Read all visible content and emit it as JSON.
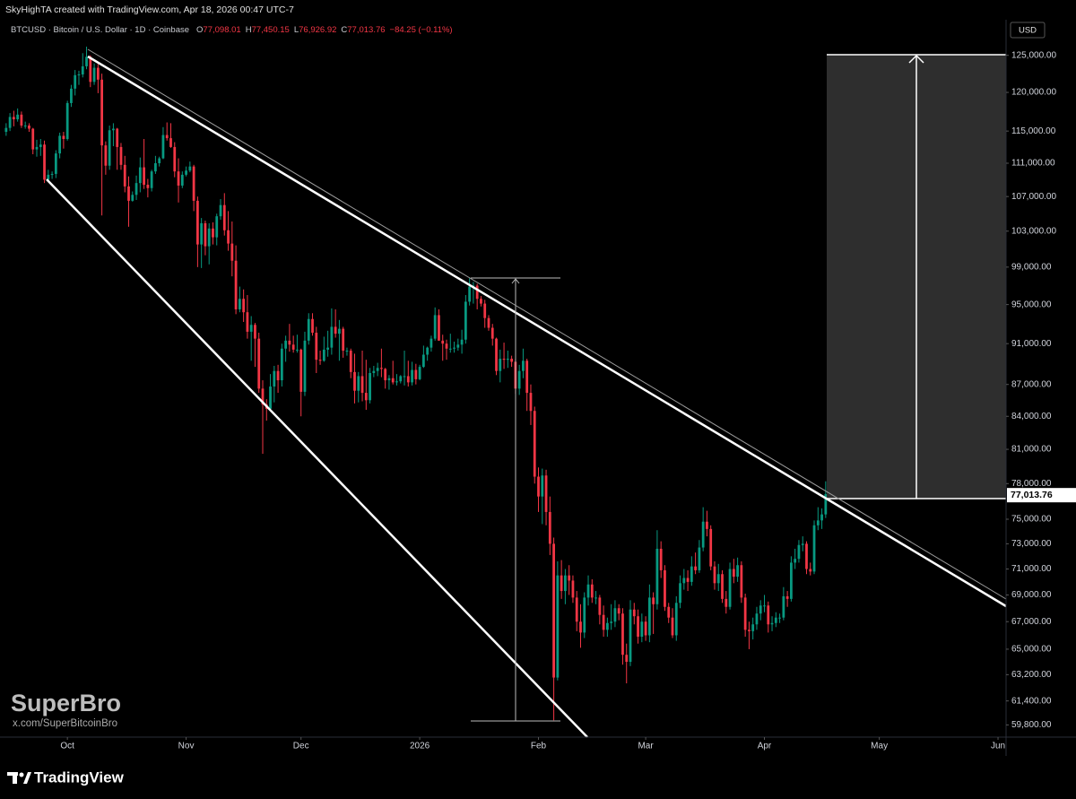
{
  "chart_data": {
    "type": "candlestick",
    "header": "SkyHighTA created with TradingView.com, Apr 18, 2026 00:47 UTC-7",
    "symbol": "BTCUSD · Bitcoin / U.S. Dollar · 1D · Coinbase",
    "ohlc_legend": [
      {
        "label": "O",
        "value": "77,098.01"
      },
      {
        "label": "H",
        "value": "77,450.15"
      },
      {
        "label": "L",
        "value": "76,926.92"
      },
      {
        "label": "C",
        "value": "77,013.76"
      }
    ],
    "change": "−84.25 (−0.11%)",
    "currency": "USD",
    "last_price_label": "77,013.76",
    "watermark": "SuperBro",
    "watermark_link": "x.com/SuperBitcoinBro",
    "brand": "TradingView",
    "up_color": "#089981",
    "down_color": "#f23645",
    "log_scale": true,
    "grid": false,
    "xlim": [
      -1.6,
      261.1
    ],
    "ylim": [
      59000,
      130000
    ],
    "xticks": [
      {
        "value": 16,
        "label": "Oct"
      },
      {
        "value": 47,
        "label": "Nov"
      },
      {
        "value": 77,
        "label": "Dec"
      },
      {
        "value": 108,
        "label": "2026"
      },
      {
        "value": 139,
        "label": "Feb"
      },
      {
        "value": 167,
        "label": "Mar"
      },
      {
        "value": 198,
        "label": "Apr"
      },
      {
        "value": 228,
        "label": "May"
      },
      {
        "value": 259,
        "label": "Jun"
      }
    ],
    "yticks": [
      {
        "value": 125000,
        "label": "125,000.00"
      },
      {
        "value": 120000,
        "label": "120,000.00"
      },
      {
        "value": 115000,
        "label": "115,000.00"
      },
      {
        "value": 111000,
        "label": "111,000.00"
      },
      {
        "value": 107000,
        "label": "107,000.00"
      },
      {
        "value": 103000,
        "label": "103,000.00"
      },
      {
        "value": 99000,
        "label": "99,000.00"
      },
      {
        "value": 95000,
        "label": "95,000.00"
      },
      {
        "value": 91000,
        "label": "91,000.00"
      },
      {
        "value": 87000,
        "label": "87,000.00"
      },
      {
        "value": 84000,
        "label": "84,000.00"
      },
      {
        "value": 81000,
        "label": "81,000.00"
      },
      {
        "value": 78000,
        "label": "78,000.00"
      },
      {
        "value": 75000,
        "label": "75,000.00"
      },
      {
        "value": 73000,
        "label": "73,000.00"
      },
      {
        "value": 71000,
        "label": "71,000.00"
      },
      {
        "value": 69000,
        "label": "69,000.00"
      },
      {
        "value": 67000,
        "label": "67,000.00"
      },
      {
        "value": 65000,
        "label": "65,000.00"
      },
      {
        "value": 63200,
        "label": "63,200.00"
      },
      {
        "value": 61400,
        "label": "61,400.00"
      },
      {
        "value": 59800,
        "label": "59,800.00"
      }
    ],
    "ohlc": [
      [
        114900,
        116000,
        114400,
        115400
      ],
      [
        115400,
        117300,
        115000,
        116800
      ],
      [
        116800,
        117600,
        115600,
        116500
      ],
      [
        116500,
        117900,
        116200,
        117100
      ],
      [
        117100,
        117500,
        115400,
        115700
      ],
      [
        115700,
        116200,
        115300,
        115700
      ],
      [
        115700,
        116000,
        114900,
        115300
      ],
      [
        115300,
        115400,
        112100,
        112700
      ],
      [
        112700,
        113900,
        111800,
        113000
      ],
      [
        113000,
        114000,
        111900,
        113300
      ],
      [
        113300,
        113800,
        108600,
        109000
      ],
      [
        109000,
        110200,
        108700,
        109600
      ],
      [
        109600,
        110000,
        109100,
        109700
      ],
      [
        109700,
        112600,
        109200,
        112200
      ],
      [
        112200,
        114800,
        111600,
        114400
      ],
      [
        114400,
        114900,
        112800,
        114000
      ],
      [
        114000,
        118900,
        113800,
        118600
      ],
      [
        118600,
        121000,
        118100,
        120500
      ],
      [
        120500,
        123000,
        119600,
        122300
      ],
      [
        122300,
        122900,
        121000,
        122400
      ],
      [
        122400,
        125300,
        122000,
        123500
      ],
      [
        123500,
        126200,
        123100,
        124800
      ],
      [
        124800,
        125000,
        120700,
        121400
      ],
      [
        121400,
        123900,
        121000,
        123300
      ],
      [
        123300,
        123800,
        119900,
        121700
      ],
      [
        121700,
        122500,
        104800,
        113200
      ],
      [
        113200,
        113700,
        109600,
        110700
      ],
      [
        110700,
        115700,
        110200,
        115100
      ],
      [
        115100,
        116000,
        113100,
        115300
      ],
      [
        115300,
        115400,
        110200,
        113000
      ],
      [
        113000,
        113500,
        110200,
        110800
      ],
      [
        110800,
        111900,
        107500,
        108200
      ],
      [
        108200,
        109400,
        103500,
        106500
      ],
      [
        106500,
        107600,
        106400,
        107200
      ],
      [
        107200,
        109500,
        106600,
        108600
      ],
      [
        108600,
        111700,
        107500,
        110500
      ],
      [
        110500,
        114000,
        107900,
        108400
      ],
      [
        108400,
        109100,
        106900,
        108000
      ],
      [
        108000,
        110200,
        107600,
        110000
      ],
      [
        110000,
        111900,
        109700,
        111000
      ],
      [
        111000,
        111800,
        110600,
        111600
      ],
      [
        111600,
        115500,
        111500,
        114500
      ],
      [
        114500,
        116100,
        113800,
        114100
      ],
      [
        114100,
        116000,
        112900,
        113000
      ],
      [
        113000,
        113600,
        109300,
        110000
      ],
      [
        110000,
        111600,
        106300,
        108300
      ],
      [
        108300,
        110000,
        108000,
        109600
      ],
      [
        109600,
        110600,
        109400,
        110100
      ],
      [
        110100,
        111200,
        109900,
        110600
      ],
      [
        110600,
        110800,
        105300,
        106500
      ],
      [
        106500,
        107000,
        99000,
        101500
      ],
      [
        101500,
        104500,
        98900,
        103900
      ],
      [
        103900,
        104200,
        100300,
        101300
      ],
      [
        101300,
        103900,
        99300,
        103300
      ],
      [
        103300,
        104000,
        101500,
        102300
      ],
      [
        102300,
        105000,
        101400,
        104700
      ],
      [
        104700,
        106700,
        104300,
        106000
      ],
      [
        106000,
        107400,
        102500,
        103100
      ],
      [
        103100,
        105300,
        100800,
        101600
      ],
      [
        101600,
        104100,
        98000,
        99700
      ],
      [
        99700,
        101400,
        94000,
        94500
      ],
      [
        94500,
        96900,
        94200,
        95600
      ],
      [
        95600,
        96600,
        93200,
        94200
      ],
      [
        94200,
        96000,
        91500,
        92200
      ],
      [
        92200,
        93800,
        89300,
        92900
      ],
      [
        92900,
        93100,
        88700,
        91500
      ],
      [
        91500,
        92100,
        86200,
        86600
      ],
      [
        86600,
        87400,
        80600,
        85100
      ],
      [
        85100,
        85600,
        83600,
        84700
      ],
      [
        84700,
        88000,
        84600,
        86800
      ],
      [
        86800,
        88800,
        85300,
        88300
      ],
      [
        88300,
        88900,
        86200,
        87400
      ],
      [
        87400,
        91000,
        86800,
        90500
      ],
      [
        90500,
        91800,
        89200,
        91300
      ],
      [
        91300,
        93000,
        90200,
        90900
      ],
      [
        90900,
        91800,
        90100,
        90400
      ],
      [
        90400,
        91900,
        90100,
        90400
      ],
      [
        90400,
        90500,
        84000,
        86300
      ],
      [
        86300,
        92200,
        85900,
        91300
      ],
      [
        91300,
        94100,
        90900,
        93500
      ],
      [
        93500,
        94100,
        91800,
        92100
      ],
      [
        92100,
        92700,
        88100,
        89400
      ],
      [
        89400,
        90300,
        88900,
        89300
      ],
      [
        89300,
        91700,
        89200,
        90400
      ],
      [
        90400,
        92300,
        89700,
        90600
      ],
      [
        90600,
        94600,
        89900,
        92700
      ],
      [
        92700,
        94500,
        91600,
        92000
      ],
      [
        92000,
        93400,
        89300,
        92500
      ],
      [
        92500,
        92700,
        89600,
        90300
      ],
      [
        90300,
        90600,
        89800,
        90300
      ],
      [
        90300,
        90500,
        87600,
        88200
      ],
      [
        88200,
        90000,
        85200,
        86400
      ],
      [
        86400,
        88200,
        85300,
        87800
      ],
      [
        87800,
        90300,
        85400,
        86200
      ],
      [
        86200,
        89400,
        84600,
        85500
      ],
      [
        85500,
        88600,
        85200,
        88100
      ],
      [
        88100,
        88800,
        87700,
        88300
      ],
      [
        88300,
        89100,
        87800,
        88600
      ],
      [
        88600,
        90500,
        87700,
        88500
      ],
      [
        88500,
        88600,
        86600,
        87400
      ],
      [
        87400,
        87900,
        86500,
        87600
      ],
      [
        87600,
        89300,
        87000,
        87200
      ],
      [
        87200,
        88000,
        86900,
        87300
      ],
      [
        87300,
        87900,
        87100,
        87800
      ],
      [
        87800,
        90300,
        86900,
        87800
      ],
      [
        87800,
        89300,
        86800,
        87200
      ],
      [
        87200,
        89200,
        86900,
        88400
      ],
      [
        88400,
        89000,
        87000,
        87500
      ],
      [
        87500,
        88900,
        87400,
        88700
      ],
      [
        88700,
        90800,
        88600,
        89900
      ],
      [
        89900,
        90700,
        89300,
        90600
      ],
      [
        90600,
        91800,
        90200,
        91500
      ],
      [
        91500,
        94700,
        91300,
        93900
      ],
      [
        93900,
        94500,
        91300,
        91300
      ],
      [
        91300,
        91900,
        89300,
        91000
      ],
      [
        91000,
        91400,
        89400,
        90500
      ],
      [
        90500,
        92000,
        90100,
        90500
      ],
      [
        90500,
        91200,
        90100,
        90600
      ],
      [
        90600,
        91500,
        90300,
        90900
      ],
      [
        90900,
        92400,
        90000,
        91400
      ],
      [
        91400,
        96000,
        91000,
        95300
      ],
      [
        95300,
        97800,
        94900,
        96900
      ],
      [
        96900,
        97400,
        95100,
        97000
      ],
      [
        97000,
        97200,
        94500,
        95600
      ],
      [
        95600,
        95900,
        94800,
        95100
      ],
      [
        95100,
        95500,
        92600,
        93600
      ],
      [
        93600,
        93900,
        92300,
        92600
      ],
      [
        92600,
        93000,
        90800,
        91500
      ],
      [
        91500,
        91600,
        87900,
        88300
      ],
      [
        88300,
        90400,
        87200,
        89500
      ],
      [
        89500,
        91100,
        88500,
        89400
      ],
      [
        89400,
        90300,
        88600,
        89500
      ],
      [
        89500,
        89800,
        88700,
        89200
      ],
      [
        89200,
        89500,
        86100,
        86600
      ],
      [
        86600,
        88900,
        86000,
        88300
      ],
      [
        88300,
        90500,
        87600,
        89300
      ],
      [
        89300,
        89500,
        84500,
        86200
      ],
      [
        86200,
        87000,
        83200,
        84500
      ],
      [
        84500,
        84900,
        78000,
        78600
      ],
      [
        78600,
        79400,
        75600,
        76900
      ],
      [
        76900,
        79300,
        74600,
        78700
      ],
      [
        78700,
        79200,
        74500,
        75600
      ],
      [
        75600,
        76900,
        72100,
        73000
      ],
      [
        73000,
        73500,
        60100,
        63000
      ],
      [
        63000,
        71600,
        62800,
        70500
      ],
      [
        70500,
        71700,
        68700,
        69300
      ],
      [
        69300,
        71000,
        68300,
        70500
      ],
      [
        70500,
        71300,
        69000,
        70100
      ],
      [
        70100,
        70500,
        68400,
        68800
      ],
      [
        68800,
        69300,
        66300,
        67000
      ],
      [
        67000,
        68300,
        65100,
        66200
      ],
      [
        66200,
        69200,
        65800,
        68800
      ],
      [
        68800,
        70500,
        68200,
        69800
      ],
      [
        69800,
        70200,
        68400,
        68800
      ],
      [
        68800,
        69300,
        68300,
        68800
      ],
      [
        68800,
        69000,
        66800,
        67500
      ],
      [
        67500,
        68200,
        65900,
        66400
      ],
      [
        66400,
        67300,
        65900,
        66900
      ],
      [
        66900,
        68300,
        66400,
        67000
      ],
      [
        67000,
        68600,
        66600,
        68000
      ],
      [
        68000,
        68300,
        67100,
        67600
      ],
      [
        67600,
        68000,
        63900,
        64600
      ],
      [
        64600,
        65400,
        62600,
        64100
      ],
      [
        64100,
        68600,
        63800,
        67900
      ],
      [
        67900,
        68400,
        66800,
        67400
      ],
      [
        67400,
        67900,
        65400,
        65900
      ],
      [
        65900,
        67600,
        65500,
        67000
      ],
      [
        67000,
        67400,
        65600,
        66000
      ],
      [
        66000,
        69800,
        65500,
        68800
      ],
      [
        68800,
        69200,
        66100,
        68300
      ],
      [
        68300,
        74100,
        67900,
        72600
      ],
      [
        72600,
        73200,
        70300,
        70900
      ],
      [
        70900,
        71300,
        67800,
        68100
      ],
      [
        68100,
        68400,
        66900,
        67300
      ],
      [
        67300,
        68000,
        65800,
        66000
      ],
      [
        66000,
        68900,
        65600,
        68400
      ],
      [
        68400,
        70500,
        68000,
        69900
      ],
      [
        69900,
        71000,
        69400,
        70300
      ],
      [
        70300,
        70900,
        69300,
        70000
      ],
      [
        70000,
        72000,
        69700,
        71200
      ],
      [
        71200,
        72300,
        70600,
        70900
      ],
      [
        70900,
        73300,
        70700,
        72700
      ],
      [
        72700,
        76000,
        72400,
        74800
      ],
      [
        74800,
        75700,
        73600,
        74200
      ],
      [
        74200,
        74500,
        70900,
        71200
      ],
      [
        71200,
        71600,
        69400,
        69900
      ],
      [
        69900,
        71400,
        69300,
        70600
      ],
      [
        70600,
        70900,
        68400,
        68700
      ],
      [
        68700,
        69300,
        67600,
        68100
      ],
      [
        68100,
        71500,
        67900,
        71000
      ],
      [
        71000,
        71800,
        69900,
        70400
      ],
      [
        70400,
        71900,
        70000,
        71300
      ],
      [
        71300,
        71600,
        68400,
        68800
      ],
      [
        68800,
        69100,
        65900,
        66400
      ],
      [
        66400,
        67000,
        65000,
        66300
      ],
      [
        66300,
        67300,
        65700,
        66800
      ],
      [
        66800,
        68100,
        66400,
        67600
      ],
      [
        67600,
        68600,
        67100,
        68200
      ],
      [
        68200,
        69000,
        67700,
        68200
      ],
      [
        68200,
        68500,
        66200,
        66800
      ],
      [
        66800,
        67400,
        66300,
        66900
      ],
      [
        66900,
        67700,
        66600,
        67300
      ],
      [
        67300,
        67600,
        66900,
        67300
      ],
      [
        67300,
        69600,
        67100,
        68900
      ],
      [
        68900,
        69300,
        68100,
        68700
      ],
      [
        68700,
        72000,
        68500,
        71500
      ],
      [
        71500,
        72600,
        71000,
        71800
      ],
      [
        71800,
        73300,
        71500,
        72900
      ],
      [
        72900,
        73600,
        72400,
        73000
      ],
      [
        73000,
        73200,
        70600,
        71000
      ],
      [
        71000,
        71500,
        70500,
        70800
      ],
      [
        70800,
        74900,
        70600,
        74500
      ],
      [
        74500,
        76000,
        74100,
        74900
      ],
      [
        74900,
        75900,
        74200,
        75400
      ],
      [
        75400,
        78200,
        75100,
        77100
      ],
      [
        77098.01,
        77450.15,
        76926.92,
        77013.76
      ]
    ]
  }
}
